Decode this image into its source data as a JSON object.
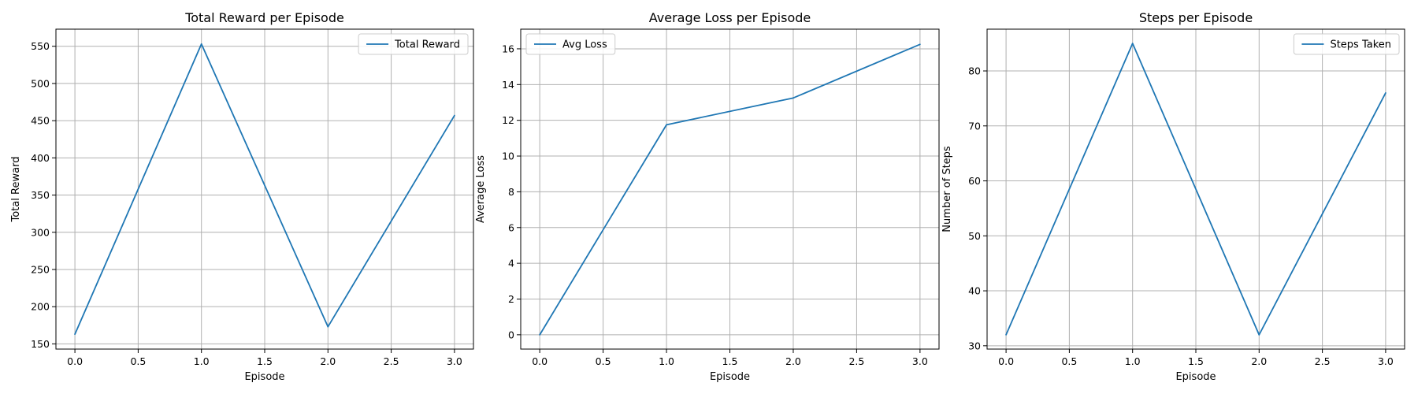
{
  "chart_data": [
    {
      "type": "line",
      "title": "Total Reward per Episode",
      "xlabel": "Episode",
      "ylabel": "Total Reward",
      "x": [
        0,
        1,
        2,
        3
      ],
      "series": [
        {
          "name": "Total Reward",
          "values": [
            163,
            553,
            173,
            457
          ]
        }
      ],
      "xlim": [
        -0.15,
        3.15
      ],
      "ylim": [
        143,
        573
      ],
      "xticks": [
        "0.0",
        "0.5",
        "1.0",
        "1.5",
        "2.0",
        "2.5",
        "3.0"
      ],
      "yticks": [
        "150",
        "200",
        "250",
        "300",
        "350",
        "400",
        "450",
        "500",
        "550"
      ],
      "legend": "top-right",
      "grid": true,
      "color": "#1f77b4"
    },
    {
      "type": "line",
      "title": "Average Loss per Episode",
      "xlabel": "Episode",
      "ylabel": "Average Loss",
      "x": [
        0,
        1,
        2,
        3
      ],
      "series": [
        {
          "name": "Avg Loss",
          "values": [
            0,
            11.75,
            13.25,
            16.25
          ]
        }
      ],
      "xlim": [
        -0.15,
        3.15
      ],
      "ylim": [
        -0.8,
        17.1
      ],
      "xticks": [
        "0.0",
        "0.5",
        "1.0",
        "1.5",
        "2.0",
        "2.5",
        "3.0"
      ],
      "yticks": [
        "0",
        "2",
        "4",
        "6",
        "8",
        "10",
        "12",
        "14",
        "16"
      ],
      "legend": "top-left",
      "grid": true,
      "color": "#1f77b4"
    },
    {
      "type": "line",
      "title": "Steps per Episode",
      "xlabel": "Episode",
      "ylabel": "Number of Steps",
      "x": [
        0,
        1,
        2,
        3
      ],
      "series": [
        {
          "name": "Steps Taken",
          "values": [
            32,
            85,
            32,
            76
          ]
        }
      ],
      "xlim": [
        -0.15,
        3.15
      ],
      "ylim": [
        29.4,
        87.6
      ],
      "xticks": [
        "0.0",
        "0.5",
        "1.0",
        "1.5",
        "2.0",
        "2.5",
        "3.0"
      ],
      "yticks": [
        "30",
        "40",
        "50",
        "60",
        "70",
        "80"
      ],
      "legend": "top-right",
      "grid": true,
      "color": "#1f77b4"
    }
  ]
}
